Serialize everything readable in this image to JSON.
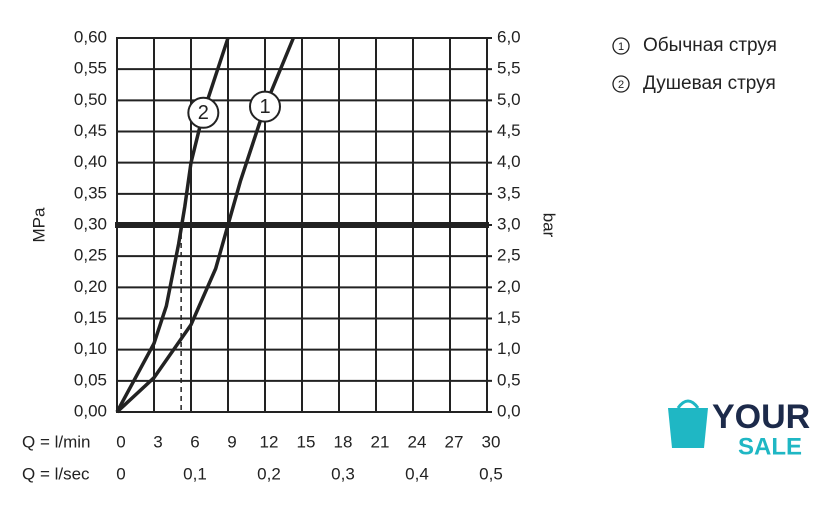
{
  "chart_data": {
    "type": "line",
    "ylabel": "MPa",
    "y2label": "bar",
    "xlabel": "Q = l/min",
    "x2label": "Q = l/sec",
    "xlim": [
      0,
      30
    ],
    "xticks": [
      0,
      3,
      6,
      9,
      12,
      15,
      18,
      21,
      24,
      27,
      30
    ],
    "x2lim": [
      0,
      0.5
    ],
    "x2ticks": [
      0,
      {
        "value": 0.1,
        "label": "0,1"
      },
      {
        "value": 0.2,
        "label": "0,2"
      },
      {
        "value": 0.3,
        "label": "0,3"
      },
      {
        "value": 0.4,
        "label": "0,4"
      },
      {
        "value": 0.5,
        "label": "0,5"
      }
    ],
    "ylim": [
      0,
      0.6
    ],
    "yticks": [
      {
        "value": 0,
        "label": "0,00"
      },
      {
        "value": 0.05,
        "label": "0,05"
      },
      {
        "value": 0.1,
        "label": "0,10"
      },
      {
        "value": 0.15,
        "label": "0,15"
      },
      {
        "value": 0.2,
        "label": "0,20"
      },
      {
        "value": 0.25,
        "label": "0,25"
      },
      {
        "value": 0.3,
        "label": "0,30"
      },
      {
        "value": 0.35,
        "label": "0,35"
      },
      {
        "value": 0.4,
        "label": "0,40"
      },
      {
        "value": 0.45,
        "label": "0,45"
      },
      {
        "value": 0.5,
        "label": "0,50"
      },
      {
        "value": 0.55,
        "label": "0,55"
      },
      {
        "value": 0.6,
        "label": "0,60"
      }
    ],
    "y2lim": [
      0,
      6
    ],
    "y2ticks": [
      {
        "value": 0,
        "label": "0,0"
      },
      {
        "value": 0.5,
        "label": "0,5"
      },
      {
        "value": 1,
        "label": "1,0"
      },
      {
        "value": 1.5,
        "label": "1,5"
      },
      {
        "value": 2,
        "label": "2,0"
      },
      {
        "value": 2.5,
        "label": "2,5"
      },
      {
        "value": 3,
        "label": "3,0"
      },
      {
        "value": 3.5,
        "label": "3,5"
      },
      {
        "value": 4,
        "label": "4,0"
      },
      {
        "value": 4.5,
        "label": "4,5"
      },
      {
        "value": 5,
        "label": "5,0"
      },
      {
        "value": 5.5,
        "label": "5,5"
      },
      {
        "value": 6,
        "label": "6,0"
      }
    ],
    "grid": true,
    "color": "#222222",
    "reference_y": 0.3,
    "drop_lines_x": [
      5.2,
      9
    ],
    "series": [
      {
        "name": "Обычная струя",
        "label": "1",
        "color": "#222222",
        "x": [
          0,
          3,
          6,
          8,
          9,
          10,
          12,
          14.3
        ],
        "values": [
          0,
          0.055,
          0.14,
          0.23,
          0.3,
          0.37,
          0.49,
          0.6
        ]
      },
      {
        "name": "Душевая струя",
        "label": "2",
        "color": "#222222",
        "x": [
          0,
          3,
          4,
          5,
          5.5,
          6,
          7,
          9
        ],
        "values": [
          0,
          0.11,
          0.17,
          0.27,
          0.33,
          0.4,
          0.48,
          0.6
        ]
      }
    ]
  },
  "watermark": {
    "line1": "YOUR",
    "line2": "SALE"
  }
}
